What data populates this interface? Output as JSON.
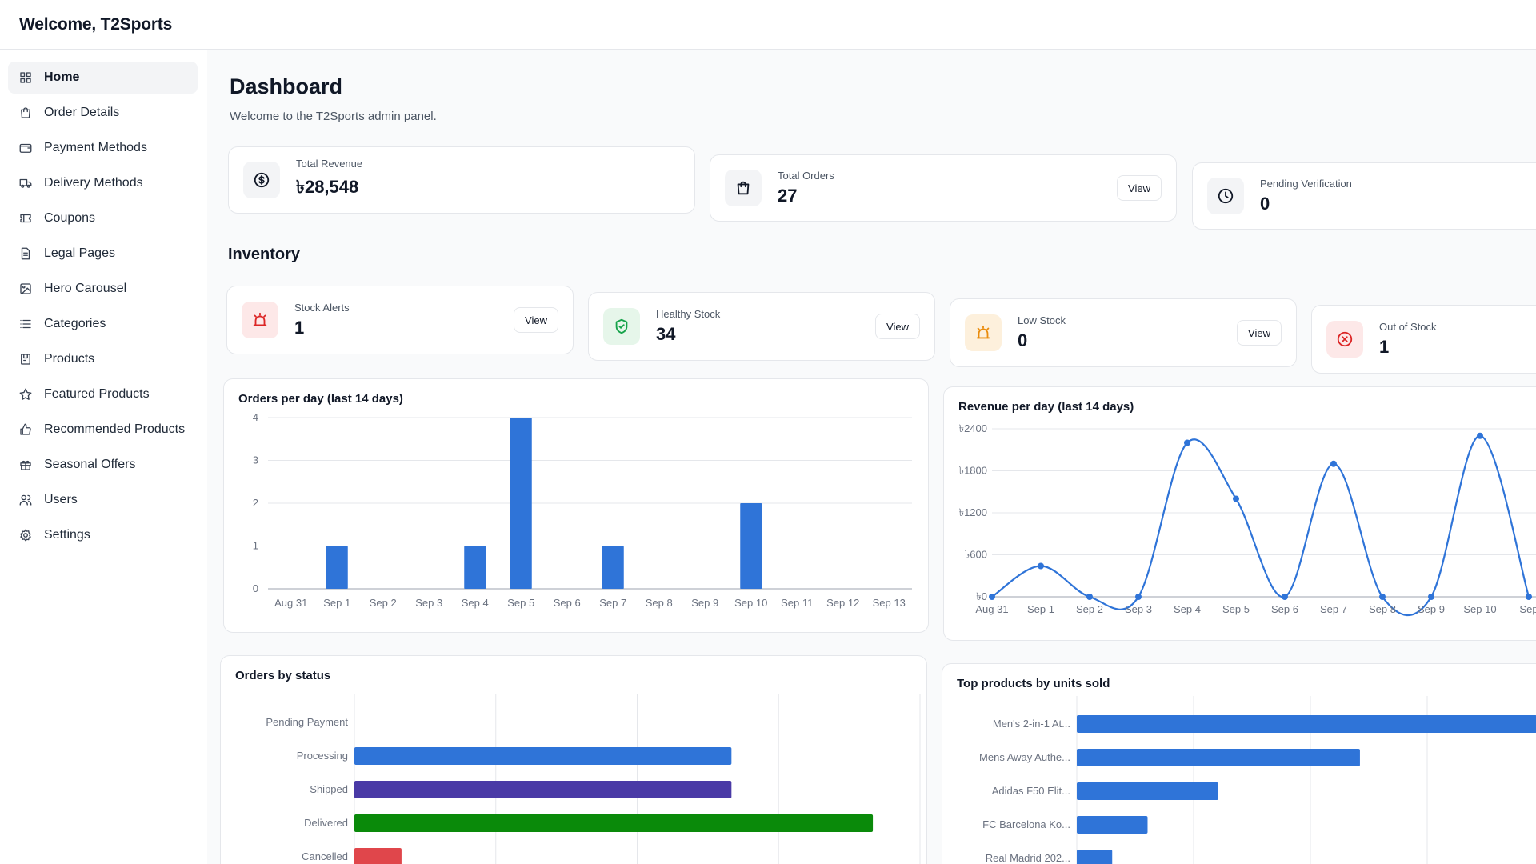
{
  "header": {
    "title": "Welcome, T2Sports"
  },
  "sidebar": {
    "items": [
      {
        "label": "Home",
        "icon": "grid-icon",
        "active": true
      },
      {
        "label": "Order Details",
        "icon": "bag-icon"
      },
      {
        "label": "Payment Methods",
        "icon": "wallet-icon"
      },
      {
        "label": "Delivery Methods",
        "icon": "truck-icon"
      },
      {
        "label": "Coupons",
        "icon": "ticket-icon"
      },
      {
        "label": "Legal Pages",
        "icon": "document-icon"
      },
      {
        "label": "Hero Carousel",
        "icon": "image-icon"
      },
      {
        "label": "Categories",
        "icon": "list-icon"
      },
      {
        "label": "Products",
        "icon": "package-icon"
      },
      {
        "label": "Featured Products",
        "icon": "star-icon"
      },
      {
        "label": "Recommended Products",
        "icon": "thumbs-up-icon"
      },
      {
        "label": "Seasonal Offers",
        "icon": "gift-icon"
      },
      {
        "label": "Users",
        "icon": "users-icon"
      },
      {
        "label": "Settings",
        "icon": "gear-icon"
      }
    ]
  },
  "dashboard": {
    "title": "Dashboard",
    "subtitle": "Welcome to the T2Sports admin panel."
  },
  "stats": {
    "revenue": {
      "label": "Total Revenue",
      "value": "৳28,548"
    },
    "orders": {
      "label": "Total Orders",
      "value": "27",
      "button": "View"
    },
    "pending": {
      "label": "Pending Verification",
      "value": "0"
    }
  },
  "inventory": {
    "title": "Inventory",
    "stock_alerts": {
      "label": "Stock Alerts",
      "value": "1",
      "button": "View"
    },
    "healthy": {
      "label": "Healthy Stock",
      "value": "34",
      "button": "View"
    },
    "low": {
      "label": "Low Stock",
      "value": "0",
      "button": "View"
    },
    "out": {
      "label": "Out of Stock",
      "value": "1"
    }
  },
  "colors": {
    "blue": "#2f74d8",
    "purple": "#4a3aa6",
    "green": "#0a8a0a",
    "red": "#e0464b",
    "alert_bg": "#fde8e8",
    "healthy_bg": "#e6f6ea",
    "low_bg": "#fdf0dc",
    "out_bg": "#fde8e8"
  },
  "chart_data": [
    {
      "type": "bar",
      "title": "Orders per day (last 14 days)",
      "categories": [
        "Aug 31",
        "Sep 1",
        "Sep 2",
        "Sep 3",
        "Sep 4",
        "Sep 5",
        "Sep 6",
        "Sep 7",
        "Sep 8",
        "Sep 9",
        "Sep 10",
        "Sep 11",
        "Sep 12",
        "Sep 13"
      ],
      "values": [
        0,
        1,
        0,
        0,
        1,
        4,
        0,
        1,
        0,
        0,
        2,
        0,
        0,
        0
      ],
      "yticks": [
        "0",
        "1",
        "2",
        "3",
        "4"
      ],
      "ylim": [
        0,
        4
      ],
      "grid": true
    },
    {
      "type": "line",
      "title": "Revenue per day (last 14 days)",
      "categories": [
        "Aug 31",
        "Sep 1",
        "Sep 2",
        "Sep 3",
        "Sep 4",
        "Sep 5",
        "Sep 6",
        "Sep 7",
        "Sep 8",
        "Sep 9",
        "Sep 10",
        "Sep"
      ],
      "values": [
        0,
        440,
        0,
        0,
        2200,
        1400,
        0,
        1900,
        0,
        0,
        2300,
        0
      ],
      "yticks": [
        "৳0",
        "৳600",
        "৳1200",
        "৳1800",
        "৳2400"
      ],
      "ylim": [
        0,
        2400
      ],
      "grid": true
    },
    {
      "type": "bar",
      "orientation": "horizontal",
      "title": "Orders by status",
      "categories": [
        "Pending Payment",
        "Processing",
        "Shipped",
        "Delivered",
        "Cancelled"
      ],
      "values": [
        0,
        8,
        8,
        11,
        1
      ],
      "colors": [
        "#2f74d8",
        "#2f74d8",
        "#4a3aa6",
        "#0a8a0a",
        "#e0464b"
      ],
      "xlim": [
        0,
        12
      ],
      "grid": true
    },
    {
      "type": "bar",
      "orientation": "horizontal",
      "title": "Top products by units sold",
      "categories": [
        "Men's 2-in-1 At...",
        "Mens Away Authe...",
        "Adidas F50 Elit...",
        "FC Barcelona Ko...",
        "Real Madrid 202..."
      ],
      "values": [
        6.5,
        4,
        2,
        1,
        0.5
      ],
      "xlim": [
        0,
        6.6
      ],
      "grid": true
    }
  ]
}
